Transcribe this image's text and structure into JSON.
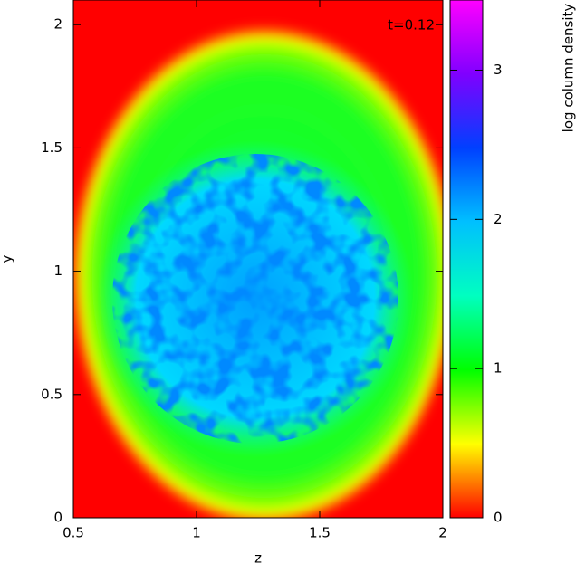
{
  "chart_data": {
    "type": "heatmap",
    "annotation": "t=0.12",
    "xlabel": "z",
    "ylabel": "y",
    "xlim": [
      0.5,
      2
    ],
    "ylim": [
      0,
      2.1
    ],
    "xticks": [
      0.5,
      1,
      1.5,
      2
    ],
    "yticks": [
      0,
      0.5,
      1,
      1.5,
      2
    ],
    "colorbar": {
      "label": "log column density",
      "clim": [
        0,
        3.47
      ],
      "ticks": [
        0,
        1,
        2,
        3
      ],
      "colors": [
        "#ff0000",
        "#ffff00",
        "#00ff00",
        "#00ffc0",
        "#00c0ff",
        "#0040ff",
        "#8000ff",
        "#ff00ff"
      ]
    }
  }
}
